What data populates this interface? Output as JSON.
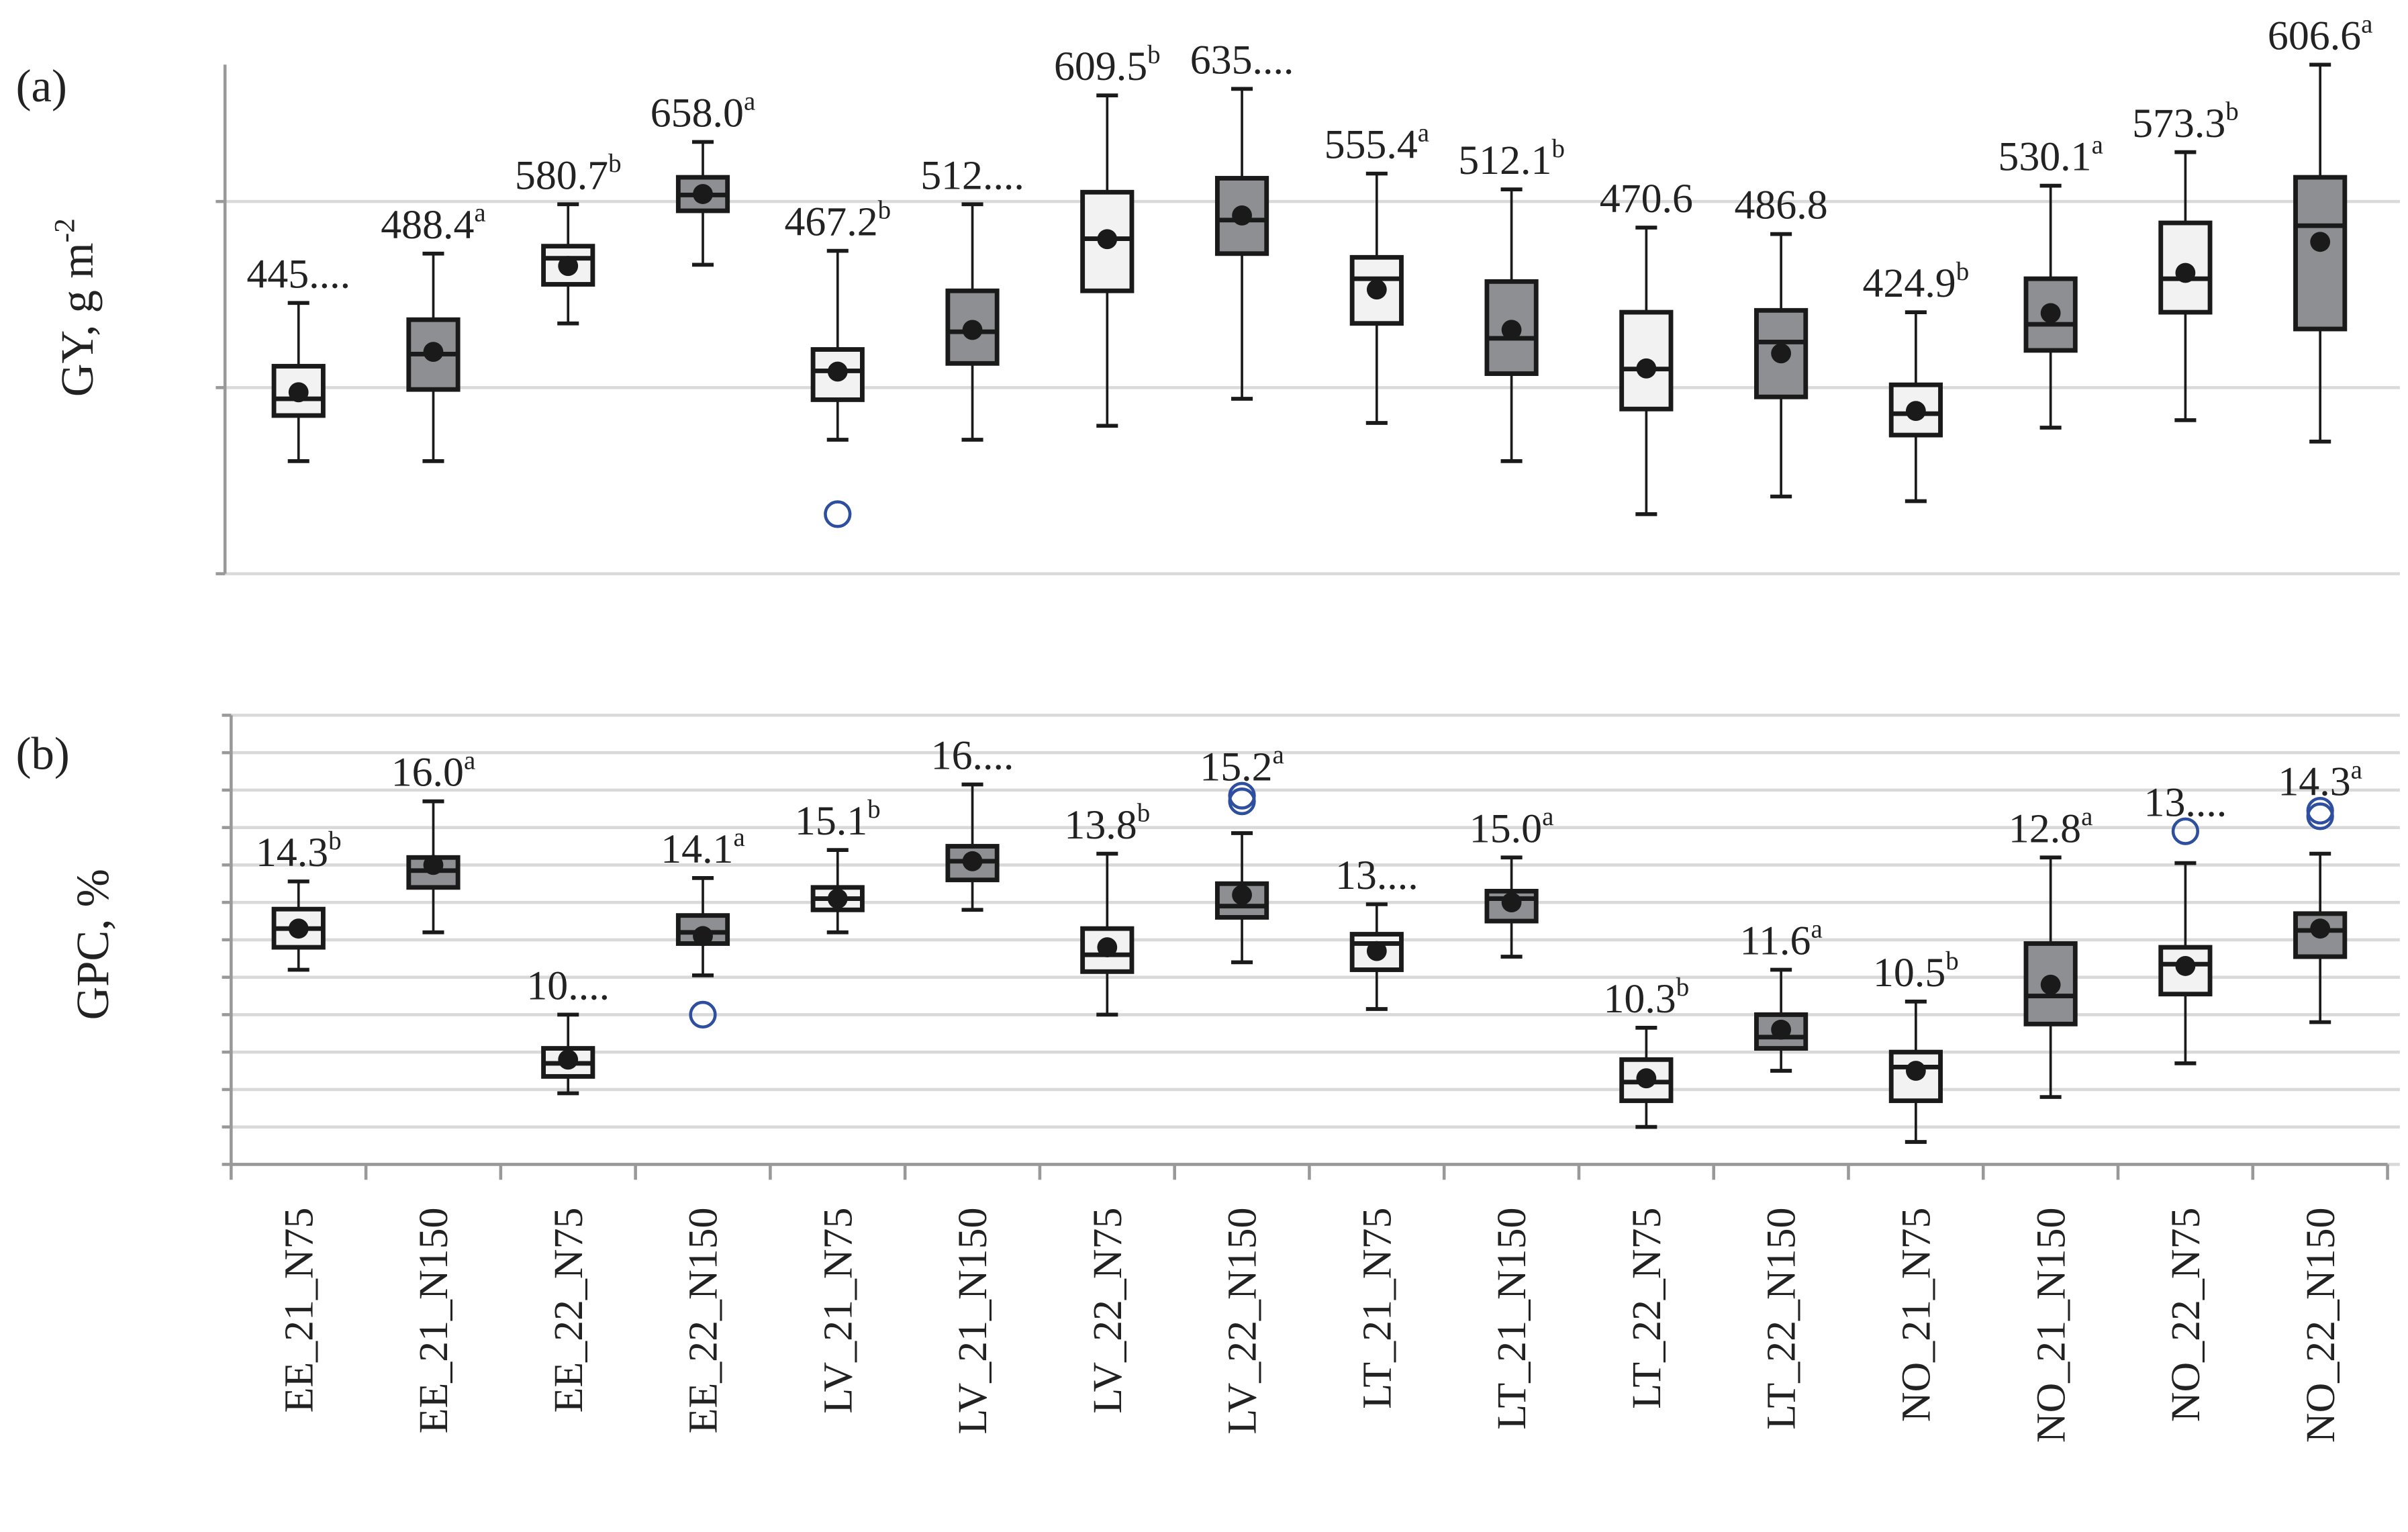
{
  "chart_data": [
    {
      "type": "box",
      "panel_label": "(a)",
      "ylabel": "GY, g m",
      "ylabel_sup": "-2",
      "ylim": [
        250,
        800
      ],
      "yticks": [
        250,
        450,
        650
      ],
      "grid": true,
      "categories": [
        "EE_21_N75",
        "EE_21_N150",
        "EE_22_N75",
        "EE_22_N150",
        "LV_21_N75",
        "LV_21_N150",
        "LV_22_N75",
        "LV_22_N150",
        "LT_21_N75",
        "LT_21_N150",
        "LT_22_N75",
        "LT_22_N150",
        "NO_21_N75",
        "NO_21_N150",
        "NO_22_N75",
        "NO_22_N150"
      ],
      "colors": {
        "N75": "#f2f2f2",
        "N150": "#8e8f93",
        "outlier": "#2e4ea0"
      },
      "boxes": [
        {
          "min": 371,
          "q1": 420,
          "median": 438,
          "q3": 473,
          "max": 541,
          "mean": 445,
          "label": "445....",
          "sup": "",
          "outliers": []
        },
        {
          "min": 371,
          "q1": 448,
          "median": 486,
          "q3": 523,
          "max": 594,
          "mean": 488.4,
          "label": "488.4",
          "sup": "a",
          "outliers": []
        },
        {
          "min": 519,
          "q1": 561,
          "median": 589,
          "q3": 602,
          "max": 647,
          "mean": 580.7,
          "label": "580.7",
          "sup": "b",
          "outliers": []
        },
        {
          "min": 582,
          "q1": 640,
          "median": 657,
          "q3": 676,
          "max": 714,
          "mean": 658.0,
          "label": "658.0",
          "sup": "a",
          "outliers": []
        },
        {
          "min": 394,
          "q1": 437,
          "median": 468,
          "q3": 491,
          "max": 597,
          "mean": 467.2,
          "label": "467.2",
          "sup": "b",
          "outliers": [
            314
          ]
        },
        {
          "min": 394,
          "q1": 476,
          "median": 510,
          "q3": 554,
          "max": 647,
          "mean": 512,
          "label": "512....",
          "sup": "",
          "outliers": []
        },
        {
          "min": 409,
          "q1": 554,
          "median": 610,
          "q3": 660,
          "max": 764,
          "mean": 609.5,
          "label": "609.5",
          "sup": "b",
          "outliers": []
        },
        {
          "min": 438,
          "q1": 594,
          "median": 630,
          "q3": 675,
          "max": 771,
          "mean": 635,
          "label": "635....",
          "sup": "",
          "outliers": []
        },
        {
          "min": 412,
          "q1": 519,
          "median": 567,
          "q3": 590,
          "max": 680,
          "mean": 555.4,
          "label": "555.4",
          "sup": "a",
          "outliers": []
        },
        {
          "min": 371,
          "q1": 465,
          "median": 503,
          "q3": 564,
          "max": 663,
          "mean": 512.1,
          "label": "512.1",
          "sup": "b",
          "outliers": []
        },
        {
          "min": 314,
          "q1": 427,
          "median": 470,
          "q3": 531,
          "max": 622,
          "mean": 470.6,
          "label": "470.6",
          "sup": "",
          "outliers": []
        },
        {
          "min": 333,
          "q1": 440,
          "median": 499,
          "q3": 533,
          "max": 615,
          "mean": 486.8,
          "label": "486.8",
          "sup": "",
          "outliers": []
        },
        {
          "min": 328,
          "q1": 399,
          "median": 422,
          "q3": 453,
          "max": 531,
          "mean": 424.9,
          "label": "424.9",
          "sup": "b",
          "outliers": []
        },
        {
          "min": 407,
          "q1": 490,
          "median": 518,
          "q3": 567,
          "max": 667,
          "mean": 530.1,
          "label": "530.1",
          "sup": "a",
          "outliers": []
        },
        {
          "min": 415,
          "q1": 531,
          "median": 567,
          "q3": 627,
          "max": 703,
          "mean": 573.3,
          "label": "573.3",
          "sup": "b",
          "outliers": []
        },
        {
          "min": 392,
          "q1": 513,
          "median": 624,
          "q3": 676,
          "max": 797,
          "mean": 606.6,
          "label": "606.6",
          "sup": "a",
          "outliers": []
        }
      ]
    },
    {
      "type": "box",
      "panel_label": "(b)",
      "ylabel": "GPC, %",
      "ylim": [
        8,
        20
      ],
      "yticks": [
        8,
        9,
        10,
        11,
        12,
        13,
        14,
        15,
        16,
        17,
        18,
        19,
        20
      ],
      "grid": true,
      "categories": [
        "EE_21_N75",
        "EE_21_N150",
        "EE_22_N75",
        "EE_22_N150",
        "LV_21_N75",
        "LV_21_N150",
        "LV_22_N75",
        "LV_22_N150",
        "LT_21_N75",
        "LT_21_N150",
        "LT_22_N75",
        "LT_22_N150",
        "NO_21_N75",
        "NO_21_N150",
        "NO_22_N75",
        "NO_22_N150"
      ],
      "boxes": [
        {
          "min": 13.2,
          "q1": 13.8,
          "median": 14.3,
          "q3": 14.82,
          "max": 15.56,
          "mean": 14.3,
          "label": "14.3",
          "sup": "b",
          "outliers": []
        },
        {
          "min": 14.2,
          "q1": 15.4,
          "median": 15.85,
          "q3": 16.2,
          "max": 17.7,
          "mean": 16.0,
          "label": "16.0",
          "sup": "a",
          "outliers": []
        },
        {
          "min": 9.9,
          "q1": 10.35,
          "median": 10.7,
          "q3": 11.1,
          "max": 12.0,
          "mean": 10.8,
          "label": "10....",
          "sup": "",
          "outliers": []
        },
        {
          "min": 13.05,
          "q1": 13.9,
          "median": 14.2,
          "q3": 14.65,
          "max": 15.65,
          "mean": 14.1,
          "label": "14.1",
          "sup": "a",
          "outliers": [
            12.0
          ]
        },
        {
          "min": 14.2,
          "q1": 14.8,
          "median": 15.1,
          "q3": 15.4,
          "max": 16.4,
          "mean": 15.1,
          "label": "15.1",
          "sup": "b",
          "outliers": []
        },
        {
          "min": 14.8,
          "q1": 15.6,
          "median": 16.1,
          "q3": 16.5,
          "max": 18.15,
          "mean": 16.1,
          "label": "16....",
          "sup": "",
          "outliers": []
        },
        {
          "min": 12.0,
          "q1": 13.15,
          "median": 13.6,
          "q3": 14.3,
          "max": 16.3,
          "mean": 13.8,
          "label": "13.8",
          "sup": "b",
          "outliers": []
        },
        {
          "min": 13.4,
          "q1": 14.6,
          "median": 14.9,
          "q3": 15.5,
          "max": 16.85,
          "mean": 15.2,
          "label": "15.2",
          "sup": "a",
          "outliers": [
            17.85,
            17.7
          ]
        },
        {
          "min": 12.15,
          "q1": 13.2,
          "median": 13.9,
          "q3": 14.15,
          "max": 14.95,
          "mean": 13.7,
          "label": "13....",
          "sup": "",
          "outliers": []
        },
        {
          "min": 13.55,
          "q1": 14.5,
          "median": 15.1,
          "q3": 15.3,
          "max": 16.2,
          "mean": 15.0,
          "label": "15.0",
          "sup": "a",
          "outliers": []
        },
        {
          "min": 9.0,
          "q1": 9.7,
          "median": 10.2,
          "q3": 10.8,
          "max": 11.65,
          "mean": 10.3,
          "label": "10.3",
          "sup": "b",
          "outliers": []
        },
        {
          "min": 10.5,
          "q1": 11.1,
          "median": 11.4,
          "q3": 12.0,
          "max": 13.2,
          "mean": 11.6,
          "label": "11.6",
          "sup": "a",
          "outliers": []
        },
        {
          "min": 8.6,
          "q1": 9.7,
          "median": 10.6,
          "q3": 11.0,
          "max": 12.35,
          "mean": 10.5,
          "label": "10.5",
          "sup": "b",
          "outliers": []
        },
        {
          "min": 9.8,
          "q1": 11.75,
          "median": 12.5,
          "q3": 13.9,
          "max": 16.2,
          "mean": 12.8,
          "label": "12.8",
          "sup": "a",
          "outliers": []
        },
        {
          "min": 10.7,
          "q1": 12.55,
          "median": 13.35,
          "q3": 13.8,
          "max": 16.05,
          "mean": 13.3,
          "label": "13....",
          "sup": "",
          "outliers": [
            16.9
          ]
        },
        {
          "min": 11.8,
          "q1": 13.55,
          "median": 14.25,
          "q3": 14.7,
          "max": 16.3,
          "mean": 14.3,
          "label": "14.3",
          "sup": "a",
          "outliers": [
            17.45,
            17.3
          ]
        }
      ]
    }
  ]
}
